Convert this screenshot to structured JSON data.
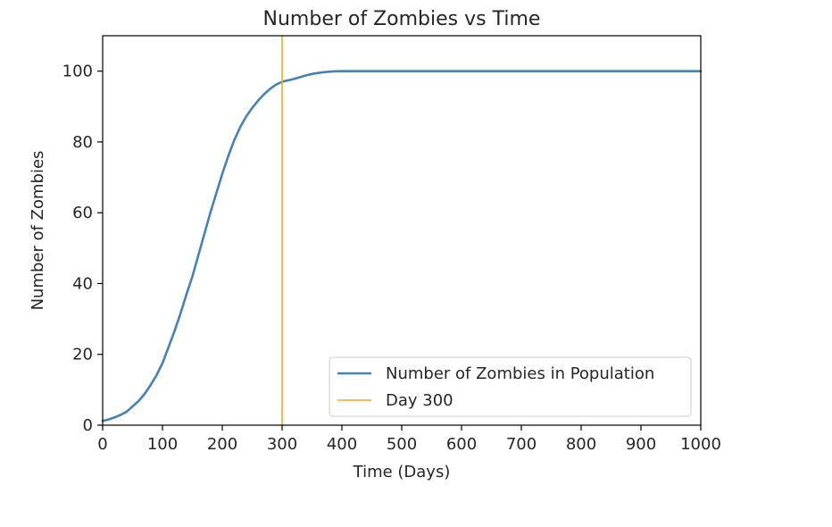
{
  "chart_data": {
    "type": "line",
    "title": "Number of Zombies vs Time",
    "xlabel": "Time (Days)",
    "ylabel": "Number of Zombies",
    "xlim": [
      0,
      1000
    ],
    "ylim": [
      0,
      110
    ],
    "xticks": [
      0,
      100,
      200,
      300,
      400,
      500,
      600,
      700,
      800,
      900,
      1000
    ],
    "yticks": [
      0,
      20,
      40,
      60,
      80,
      100
    ],
    "grid": false,
    "legend_position": "lower-right",
    "series": [
      {
        "name": "Number of Zombies in Population",
        "color": "#4682b4",
        "x": [
          0,
          10,
          20,
          30,
          40,
          50,
          60,
          70,
          80,
          90,
          100,
          110,
          120,
          130,
          140,
          150,
          160,
          170,
          180,
          190,
          200,
          210,
          220,
          230,
          240,
          250,
          260,
          270,
          280,
          290,
          300,
          310,
          320,
          330,
          340,
          350,
          360,
          370,
          380,
          390,
          400,
          420,
          450,
          500,
          600,
          700,
          800,
          900,
          1000
        ],
        "y": [
          1.2,
          1.6,
          2.2,
          2.9,
          3.8,
          5.3,
          6.8,
          8.8,
          11.3,
          14.1,
          17.5,
          22.0,
          26.5,
          31.5,
          36.9,
          42.0,
          48.0,
          54.0,
          60.0,
          65.5,
          71.0,
          76.0,
          80.5,
          84.2,
          87.2,
          89.6,
          91.7,
          93.5,
          95.0,
          96.2,
          97.0,
          97.4,
          97.8,
          98.3,
          98.8,
          99.2,
          99.5,
          99.7,
          99.85,
          99.95,
          100,
          100,
          100,
          100,
          100,
          100,
          100,
          100,
          100
        ]
      },
      {
        "name": "Day 300",
        "color": "#f5a623",
        "type": "vline",
        "x": 300
      }
    ]
  }
}
